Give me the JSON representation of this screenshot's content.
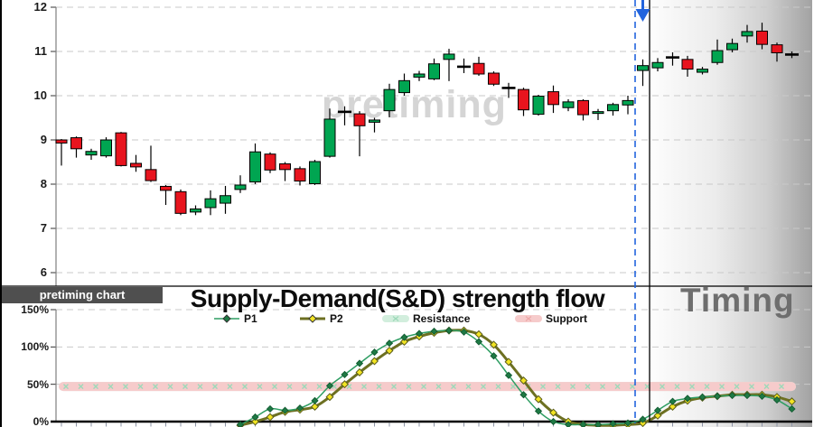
{
  "tags": {
    "left": "pretiming chart",
    "right": "Timing"
  },
  "colors": {
    "up": "#00a551",
    "down": "#e8141e",
    "doji": "#000000",
    "grid": "#c9c9c9",
    "spine": "#7f7f7f",
    "axis": "#000000",
    "signal_blue": "#2264dd",
    "minor_tick": "#8d94a6",
    "watermark": "#d5d5d5",
    "timing_text": "#6e6e6e",
    "tag_bg": "#4f4f4f"
  },
  "chart_data": [
    {
      "type": "candlestick",
      "watermark": "pretiming",
      "y_ticks": [
        "12",
        "11",
        "10",
        "9",
        "8",
        "7",
        "6"
      ],
      "ylim": [
        6,
        12
      ],
      "candles": [
        [
          9.0,
          9.02,
          8.42,
          8.93,
          "r"
        ],
        [
          9.05,
          9.08,
          8.6,
          8.8,
          "r"
        ],
        [
          8.66,
          8.8,
          8.55,
          8.74,
          "g"
        ],
        [
          8.64,
          9.06,
          8.6,
          9.0,
          "g"
        ],
        [
          9.16,
          9.18,
          8.4,
          8.42,
          "r"
        ],
        [
          8.47,
          8.66,
          8.28,
          8.39,
          "r"
        ],
        [
          8.33,
          8.87,
          8.05,
          8.08,
          "r"
        ],
        [
          7.95,
          7.98,
          7.53,
          7.86,
          "r"
        ],
        [
          7.83,
          7.88,
          7.3,
          7.34,
          "r"
        ],
        [
          7.37,
          7.52,
          7.3,
          7.44,
          "g"
        ],
        [
          7.47,
          7.86,
          7.3,
          7.67,
          "g"
        ],
        [
          7.57,
          7.96,
          7.33,
          7.74,
          "g"
        ],
        [
          7.88,
          8.2,
          7.8,
          7.98,
          "g"
        ],
        [
          8.05,
          8.92,
          8.0,
          8.73,
          "g"
        ],
        [
          8.68,
          8.72,
          8.25,
          8.32,
          "r"
        ],
        [
          8.46,
          8.5,
          8.07,
          8.33,
          "r"
        ],
        [
          8.35,
          8.4,
          7.97,
          8.07,
          "r"
        ],
        [
          8.01,
          8.55,
          7.98,
          8.51,
          "g"
        ],
        [
          8.63,
          9.71,
          8.6,
          9.47,
          "g"
        ],
        [
          9.63,
          9.76,
          9.33,
          9.64,
          "k"
        ],
        [
          9.59,
          9.65,
          8.63,
          9.32,
          "r"
        ],
        [
          9.4,
          9.5,
          9.17,
          9.45,
          "g"
        ],
        [
          9.66,
          10.27,
          9.51,
          10.14,
          "g"
        ],
        [
          10.07,
          10.5,
          10.0,
          10.34,
          "g"
        ],
        [
          10.42,
          10.56,
          10.33,
          10.49,
          "g"
        ],
        [
          10.38,
          10.84,
          10.35,
          10.72,
          "g"
        ],
        [
          10.82,
          11.06,
          10.33,
          10.94,
          "g"
        ],
        [
          10.65,
          10.84,
          10.51,
          10.66,
          "k"
        ],
        [
          10.73,
          10.88,
          10.45,
          10.49,
          "r"
        ],
        [
          10.51,
          10.55,
          10.22,
          10.26,
          "r"
        ],
        [
          10.17,
          10.29,
          9.95,
          10.18,
          "k"
        ],
        [
          10.14,
          10.18,
          9.54,
          9.68,
          "r"
        ],
        [
          9.58,
          10.02,
          9.55,
          9.99,
          "g"
        ],
        [
          10.09,
          10.23,
          9.61,
          9.8,
          "r"
        ],
        [
          9.73,
          9.92,
          9.65,
          9.86,
          "g"
        ],
        [
          9.89,
          9.92,
          9.44,
          9.57,
          "r"
        ],
        [
          9.6,
          9.7,
          9.45,
          9.64,
          "g"
        ],
        [
          9.66,
          9.84,
          9.55,
          9.8,
          "g"
        ],
        [
          9.79,
          10.0,
          9.58,
          9.89,
          "g"
        ],
        [
          10.57,
          10.82,
          10.22,
          10.68,
          "g"
        ],
        [
          10.63,
          10.85,
          10.55,
          10.75,
          "g"
        ],
        [
          10.86,
          10.98,
          10.68,
          10.87,
          "k"
        ],
        [
          10.82,
          10.9,
          10.43,
          10.6,
          "r"
        ],
        [
          10.53,
          10.65,
          10.48,
          10.6,
          "g"
        ],
        [
          10.75,
          11.27,
          10.7,
          11.02,
          "g"
        ],
        [
          11.04,
          11.29,
          10.98,
          11.18,
          "g"
        ],
        [
          11.35,
          11.6,
          11.2,
          11.45,
          "g"
        ],
        [
          11.46,
          11.65,
          11.05,
          11.16,
          "r"
        ],
        [
          11.15,
          11.2,
          10.77,
          10.97,
          "r"
        ],
        [
          10.92,
          11.0,
          10.85,
          10.94,
          "k"
        ]
      ]
    },
    {
      "type": "line",
      "title": "Supply-Demand(S&D) strength flow",
      "y_ticks": [
        "150%",
        "100%",
        "50%",
        "0%"
      ],
      "y_tick_pcts": [
        150,
        100,
        50,
        0
      ],
      "ylim_pct": [
        0,
        150
      ],
      "series": [
        {
          "name": "P1",
          "start_index": 12,
          "values": [
            -4,
            6,
            17,
            15,
            18,
            28,
            48,
            63,
            78,
            93,
            105,
            113,
            118,
            121,
            122,
            120,
            107,
            88,
            62,
            36,
            14,
            0,
            -4,
            -4,
            -4,
            -3,
            -2,
            3,
            15,
            27,
            31,
            33,
            34,
            35,
            35,
            34,
            29,
            17
          ]
        },
        {
          "name": "P2",
          "start_index": 12,
          "values": [
            -5,
            0,
            6,
            13,
            16,
            20,
            33,
            50,
            66,
            81,
            95,
            107,
            114,
            119,
            122,
            122,
            117,
            103,
            80,
            55,
            30,
            12,
            0,
            -4,
            -5,
            -5,
            -4,
            -2,
            8,
            20,
            28,
            32,
            34,
            36,
            36,
            36,
            33,
            27
          ]
        }
      ],
      "bands": [
        {
          "name": "Resistance",
          "level_pct": 47,
          "fill": "#d2eedd",
          "mark": "#9ed9ba"
        },
        {
          "name": "Support",
          "level_pct": 47,
          "fill": "#f6cbcb",
          "mark": "#eda9a9"
        }
      ],
      "legend": [
        {
          "label": "P1",
          "kind": "line",
          "line": "#2f9e63",
          "marker": "#1e7a44",
          "stroke_w": 1.5
        },
        {
          "label": "P2",
          "kind": "line",
          "line": "#6d7022",
          "marker": "#f2e423",
          "stroke_w": 3
        },
        {
          "label": "Resistance",
          "kind": "band",
          "fill": "#d2eedd",
          "mark": "#9ed9ba"
        },
        {
          "label": "Support",
          "kind": "band",
          "fill": "#f6cbcb",
          "mark": "#eda9a9"
        }
      ],
      "series_styles": {
        "P1": {
          "line": "#2f9e63",
          "marker": "#1e7a44",
          "marker_edge": "#145c33",
          "stroke_w": 1.5,
          "marker_r": 3.4
        },
        "P2": {
          "line": "#6d7022",
          "marker": "#f2e423",
          "marker_edge": "#5a5c1a",
          "stroke_w": 3,
          "marker_r": 3.8
        }
      }
    }
  ],
  "annotations": {
    "signal_arrow": "down",
    "signal_candle_index": 39
  }
}
